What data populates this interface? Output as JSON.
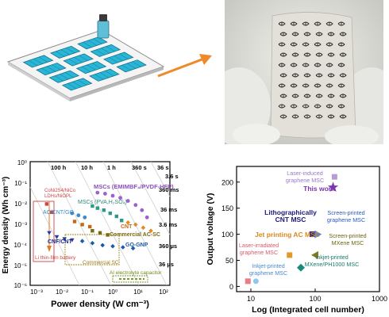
{
  "colors": {
    "cell_fill": "#29b6d6",
    "cell_edge": "#0c6a80",
    "arrow": "#ef8a2a",
    "this_work": "#8e3fb6"
  },
  "ragone": {
    "xlabel": "Power density (W cm⁻³)",
    "ylabel": "Energy density (Wh cm⁻³)",
    "x_ticks": [
      "10⁻³",
      "10⁻²",
      "10⁻¹",
      "10⁰",
      "10¹",
      "10²"
    ],
    "y_ticks": [
      "10⁰",
      "10⁻¹",
      "10⁻²",
      "10⁻³",
      "10⁻⁴",
      "10⁻⁵",
      "10⁻⁶"
    ],
    "time_top": [
      "100 h",
      "10 h",
      "1 h",
      "360 s",
      "36 s"
    ],
    "time_right": [
      "3.6 s",
      "360 ms",
      "36 ms",
      "3.6 ms",
      "360 µs",
      "36 µs"
    ],
    "labels": {
      "emim": "MSCs (EMIMBF₄/PVDF-HFP)",
      "pva": "MSCs (PVA,H₂SO₄)",
      "ac": "AC/CNT/GO",
      "cnt": "CNT",
      "commercial_ac": "Commercial AC-SC",
      "gognp": "GO-GNP",
      "cnfcnt": "CNF/CNT",
      "conico1": "CoNi2S4/NiCo",
      "conico2": "LDHs/NiOPL",
      "li": "Li thin-film battery",
      "commercial_sc": "Commercial SC",
      "al": "Al electrolyte capacitor"
    }
  },
  "chart_data": {
    "type": "scatter",
    "xlabel": "Log (Integrated cell number)",
    "ylabel": "Output voltage (V)",
    "xlim": [
      6,
      1000
    ],
    "ylim": [
      -10,
      230
    ],
    "x_scale": "log",
    "x_ticks": [
      "10",
      "100",
      "1000"
    ],
    "y_ticks": [
      "0",
      "50",
      "100",
      "150",
      "200"
    ],
    "series": [
      {
        "name": "Laser-induced graphene MSC",
        "color": "#b79cd3",
        "marker": "square",
        "points": [
          [
            200,
            210
          ]
        ]
      },
      {
        "name": "This work",
        "color": "#7a35b0",
        "marker": "star",
        "points": [
          [
            190,
            190
          ]
        ]
      },
      {
        "name": "Lithographically CNT MSC",
        "color": "#1a1a8a",
        "marker": "square",
        "points": [
          [
            90,
            100
          ]
        ]
      },
      {
        "name": "Screen-printed graphene MSC",
        "color": "#5b82d8",
        "marker": "triangle-right",
        "points": [
          [
            110,
            100
          ]
        ]
      },
      {
        "name": "Jet printing AC MSC",
        "color": "#e09a2a",
        "marker": "square",
        "points": [
          [
            40,
            60
          ]
        ]
      },
      {
        "name": "Screen-printed MXene MSC",
        "color": "#807a20",
        "marker": "triangle-left",
        "points": [
          [
            100,
            60
          ]
        ]
      },
      {
        "name": "Laser-irradiated graphene MSC",
        "color": "#e87c8a",
        "marker": "square",
        "points": [
          [
            9,
            10
          ]
        ]
      },
      {
        "name": "Inkjet-printed graphene MSC",
        "color": "#8fc8ee",
        "marker": "circle",
        "points": [
          [
            12,
            10
          ]
        ]
      },
      {
        "name": "Inkjet-printed MXene/PH1000 MSC",
        "color": "#1a8a7a",
        "marker": "diamond",
        "points": [
          [
            60,
            36
          ]
        ]
      }
    ],
    "annotations": [
      "Laser-induced\ngraphene MSC",
      "This work",
      "Lithographically\nCNT MSC",
      "Screen-printed\ngraphene MSC",
      "Jet printing AC MSC",
      "Screen-printed\nMXene MSC",
      "Laser-irradiated\ngraphene MSC",
      "Inkjet-printed\ngraphene MSC",
      "Inkjet-printed\nMXene/PH1000 MSC"
    ]
  }
}
